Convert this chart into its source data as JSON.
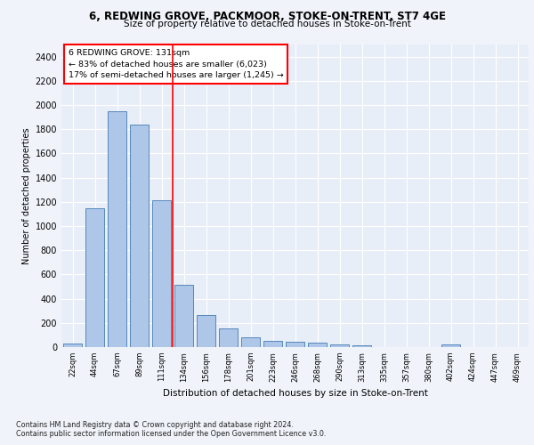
{
  "title1": "6, REDWING GROVE, PACKMOOR, STOKE-ON-TRENT, ST7 4GE",
  "title2": "Size of property relative to detached houses in Stoke-on-Trent",
  "xlabel": "Distribution of detached houses by size in Stoke-on-Trent",
  "ylabel": "Number of detached properties",
  "categories": [
    "22sqm",
    "44sqm",
    "67sqm",
    "89sqm",
    "111sqm",
    "134sqm",
    "156sqm",
    "178sqm",
    "201sqm",
    "223sqm",
    "246sqm",
    "268sqm",
    "290sqm",
    "313sqm",
    "335sqm",
    "357sqm",
    "380sqm",
    "402sqm",
    "424sqm",
    "447sqm",
    "469sqm"
  ],
  "values": [
    30,
    1150,
    1950,
    1840,
    1210,
    515,
    265,
    155,
    80,
    50,
    45,
    40,
    22,
    15,
    0,
    0,
    0,
    20,
    0,
    0,
    0
  ],
  "bar_color": "#aec6e8",
  "bar_edge_color": "#5588bb",
  "red_line_x": 4.5,
  "annotation_title": "6 REDWING GROVE: 131sqm",
  "annotation_line1": "← 83% of detached houses are smaller (6,023)",
  "annotation_line2": "17% of semi-detached houses are larger (1,245) →",
  "ylim": [
    0,
    2500
  ],
  "yticks": [
    0,
    200,
    400,
    600,
    800,
    1000,
    1200,
    1400,
    1600,
    1800,
    2000,
    2200,
    2400
  ],
  "footer1": "Contains HM Land Registry data © Crown copyright and database right 2024.",
  "footer2": "Contains public sector information licensed under the Open Government Licence v3.0.",
  "bg_color": "#f0f4fa",
  "plot_bg_color": "#e8eef8"
}
